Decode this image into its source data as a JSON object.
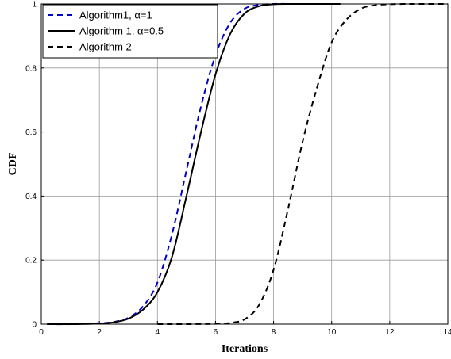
{
  "chart_data": {
    "type": "line",
    "title": "",
    "xlabel": "Iterations",
    "ylabel": "CDF",
    "xlim": [
      0,
      14
    ],
    "ylim": [
      0,
      1
    ],
    "xticks": [
      "0",
      "2",
      "4",
      "6",
      "8",
      "10",
      "12",
      "14"
    ],
    "yticks": [
      "0",
      "0.2",
      "0.4",
      "0.6",
      "0.8",
      "1"
    ],
    "grid": true,
    "legend_position": "top-left",
    "series": [
      {
        "name": "Algorithm1,  α=1",
        "color": "#0000cc",
        "style": "dashed",
        "x": [
          0.2,
          1,
          2,
          2.5,
          3,
          3.5,
          4,
          4.5,
          5,
          5.5,
          6,
          6.5,
          7,
          7.5,
          8,
          8.5,
          9,
          9.5,
          10
        ],
        "y": [
          0.0,
          0.0,
          0.003,
          0.007,
          0.02,
          0.055,
          0.13,
          0.28,
          0.48,
          0.68,
          0.84,
          0.94,
          0.985,
          0.997,
          1.0,
          1.0,
          1.0,
          1.0,
          1.0
        ]
      },
      {
        "name": "Algorithm 1,  α=0.5",
        "color": "#000000",
        "style": "solid",
        "x": [
          0.2,
          1,
          2,
          2.5,
          3,
          3.5,
          4,
          4.5,
          5,
          5.5,
          6,
          6.5,
          7,
          7.5,
          8,
          8.5,
          9,
          9.5,
          10.3
        ],
        "y": [
          0.0,
          0.0,
          0.002,
          0.006,
          0.017,
          0.045,
          0.1,
          0.21,
          0.4,
          0.6,
          0.78,
          0.905,
          0.97,
          0.993,
          0.999,
          1.0,
          1.0,
          1.0,
          1.0
        ]
      },
      {
        "name": "Algorithm 2",
        "color": "#000000",
        "style": "dashed",
        "x": [
          4,
          5,
          6,
          6.5,
          7,
          7.5,
          8,
          8.5,
          9,
          9.5,
          10,
          10.5,
          11,
          11.5,
          12,
          12.5,
          13,
          14
        ],
        "y": [
          0.0,
          0.0,
          0.001,
          0.004,
          0.015,
          0.06,
          0.17,
          0.36,
          0.57,
          0.74,
          0.88,
          0.95,
          0.985,
          0.996,
          0.999,
          1.0,
          1.0,
          1.0
        ]
      }
    ]
  }
}
